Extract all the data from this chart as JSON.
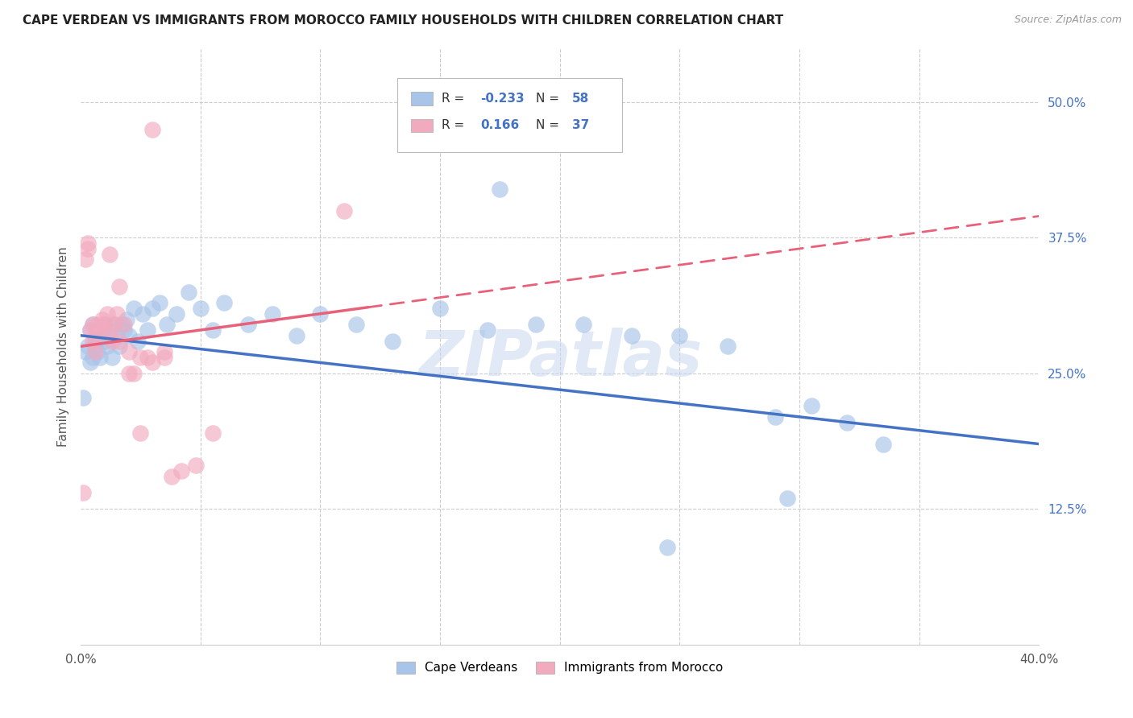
{
  "title": "CAPE VERDEAN VS IMMIGRANTS FROM MOROCCO FAMILY HOUSEHOLDS WITH CHILDREN CORRELATION CHART",
  "source": "Source: ZipAtlas.com",
  "ylabel": "Family Households with Children",
  "xlim": [
    0.0,
    0.4
  ],
  "ylim": [
    0.0,
    0.55
  ],
  "x_ticks": [
    0.0,
    0.05,
    0.1,
    0.15,
    0.2,
    0.25,
    0.3,
    0.35,
    0.4
  ],
  "x_tick_labels": [
    "0.0%",
    "",
    "",
    "",
    "",
    "",
    "",
    "",
    "40.0%"
  ],
  "y_ticks_right": [
    0.125,
    0.25,
    0.375,
    0.5
  ],
  "y_tick_labels_right": [
    "12.5%",
    "25.0%",
    "37.5%",
    "50.0%"
  ],
  "blue_color": "#a8c4e8",
  "pink_color": "#f2aabf",
  "blue_line_color": "#4472c4",
  "pink_line_color": "#e8607a",
  "legend_label_blue": "Cape Verdeans",
  "legend_label_pink": "Immigrants from Morocco",
  "watermark": "ZIPatlas",
  "blue_scatter_x": [
    0.001,
    0.002,
    0.003,
    0.004,
    0.004,
    0.005,
    0.005,
    0.006,
    0.006,
    0.007,
    0.007,
    0.008,
    0.008,
    0.009,
    0.01,
    0.01,
    0.011,
    0.012,
    0.013,
    0.014,
    0.015,
    0.016,
    0.017,
    0.018,
    0.019,
    0.02,
    0.022,
    0.024,
    0.026,
    0.028,
    0.03,
    0.033,
    0.036,
    0.04,
    0.045,
    0.05,
    0.055,
    0.06,
    0.07,
    0.08,
    0.09,
    0.1,
    0.115,
    0.13,
    0.15,
    0.17,
    0.19,
    0.21,
    0.23,
    0.25,
    0.27,
    0.29,
    0.305,
    0.32,
    0.335,
    0.295,
    0.175,
    0.245
  ],
  "blue_scatter_y": [
    0.228,
    0.27,
    0.275,
    0.26,
    0.29,
    0.295,
    0.265,
    0.28,
    0.275,
    0.285,
    0.27,
    0.265,
    0.285,
    0.29,
    0.295,
    0.28,
    0.275,
    0.285,
    0.265,
    0.295,
    0.285,
    0.275,
    0.295,
    0.29,
    0.3,
    0.285,
    0.31,
    0.28,
    0.305,
    0.29,
    0.31,
    0.315,
    0.295,
    0.305,
    0.325,
    0.31,
    0.29,
    0.315,
    0.295,
    0.305,
    0.285,
    0.305,
    0.295,
    0.28,
    0.31,
    0.29,
    0.295,
    0.295,
    0.285,
    0.285,
    0.275,
    0.21,
    0.22,
    0.205,
    0.185,
    0.135,
    0.42,
    0.09
  ],
  "pink_scatter_x": [
    0.001,
    0.002,
    0.003,
    0.003,
    0.004,
    0.005,
    0.005,
    0.006,
    0.006,
    0.007,
    0.008,
    0.009,
    0.01,
    0.011,
    0.012,
    0.013,
    0.014,
    0.015,
    0.016,
    0.018,
    0.02,
    0.022,
    0.025,
    0.028,
    0.03,
    0.035,
    0.038,
    0.042,
    0.048,
    0.055,
    0.012,
    0.016,
    0.02,
    0.025,
    0.03,
    0.035,
    0.11
  ],
  "pink_scatter_y": [
    0.14,
    0.355,
    0.37,
    0.365,
    0.29,
    0.295,
    0.28,
    0.27,
    0.285,
    0.295,
    0.29,
    0.3,
    0.295,
    0.305,
    0.29,
    0.28,
    0.295,
    0.305,
    0.28,
    0.295,
    0.27,
    0.25,
    0.265,
    0.265,
    0.26,
    0.265,
    0.155,
    0.16,
    0.165,
    0.195,
    0.36,
    0.33,
    0.25,
    0.195,
    0.475,
    0.27,
    0.4
  ],
  "blue_line_x0": 0.0,
  "blue_line_y0": 0.285,
  "blue_line_x1": 0.4,
  "blue_line_y1": 0.185,
  "pink_line_x0": 0.0,
  "pink_line_y0": 0.275,
  "pink_line_x1": 0.4,
  "pink_line_y1": 0.395
}
